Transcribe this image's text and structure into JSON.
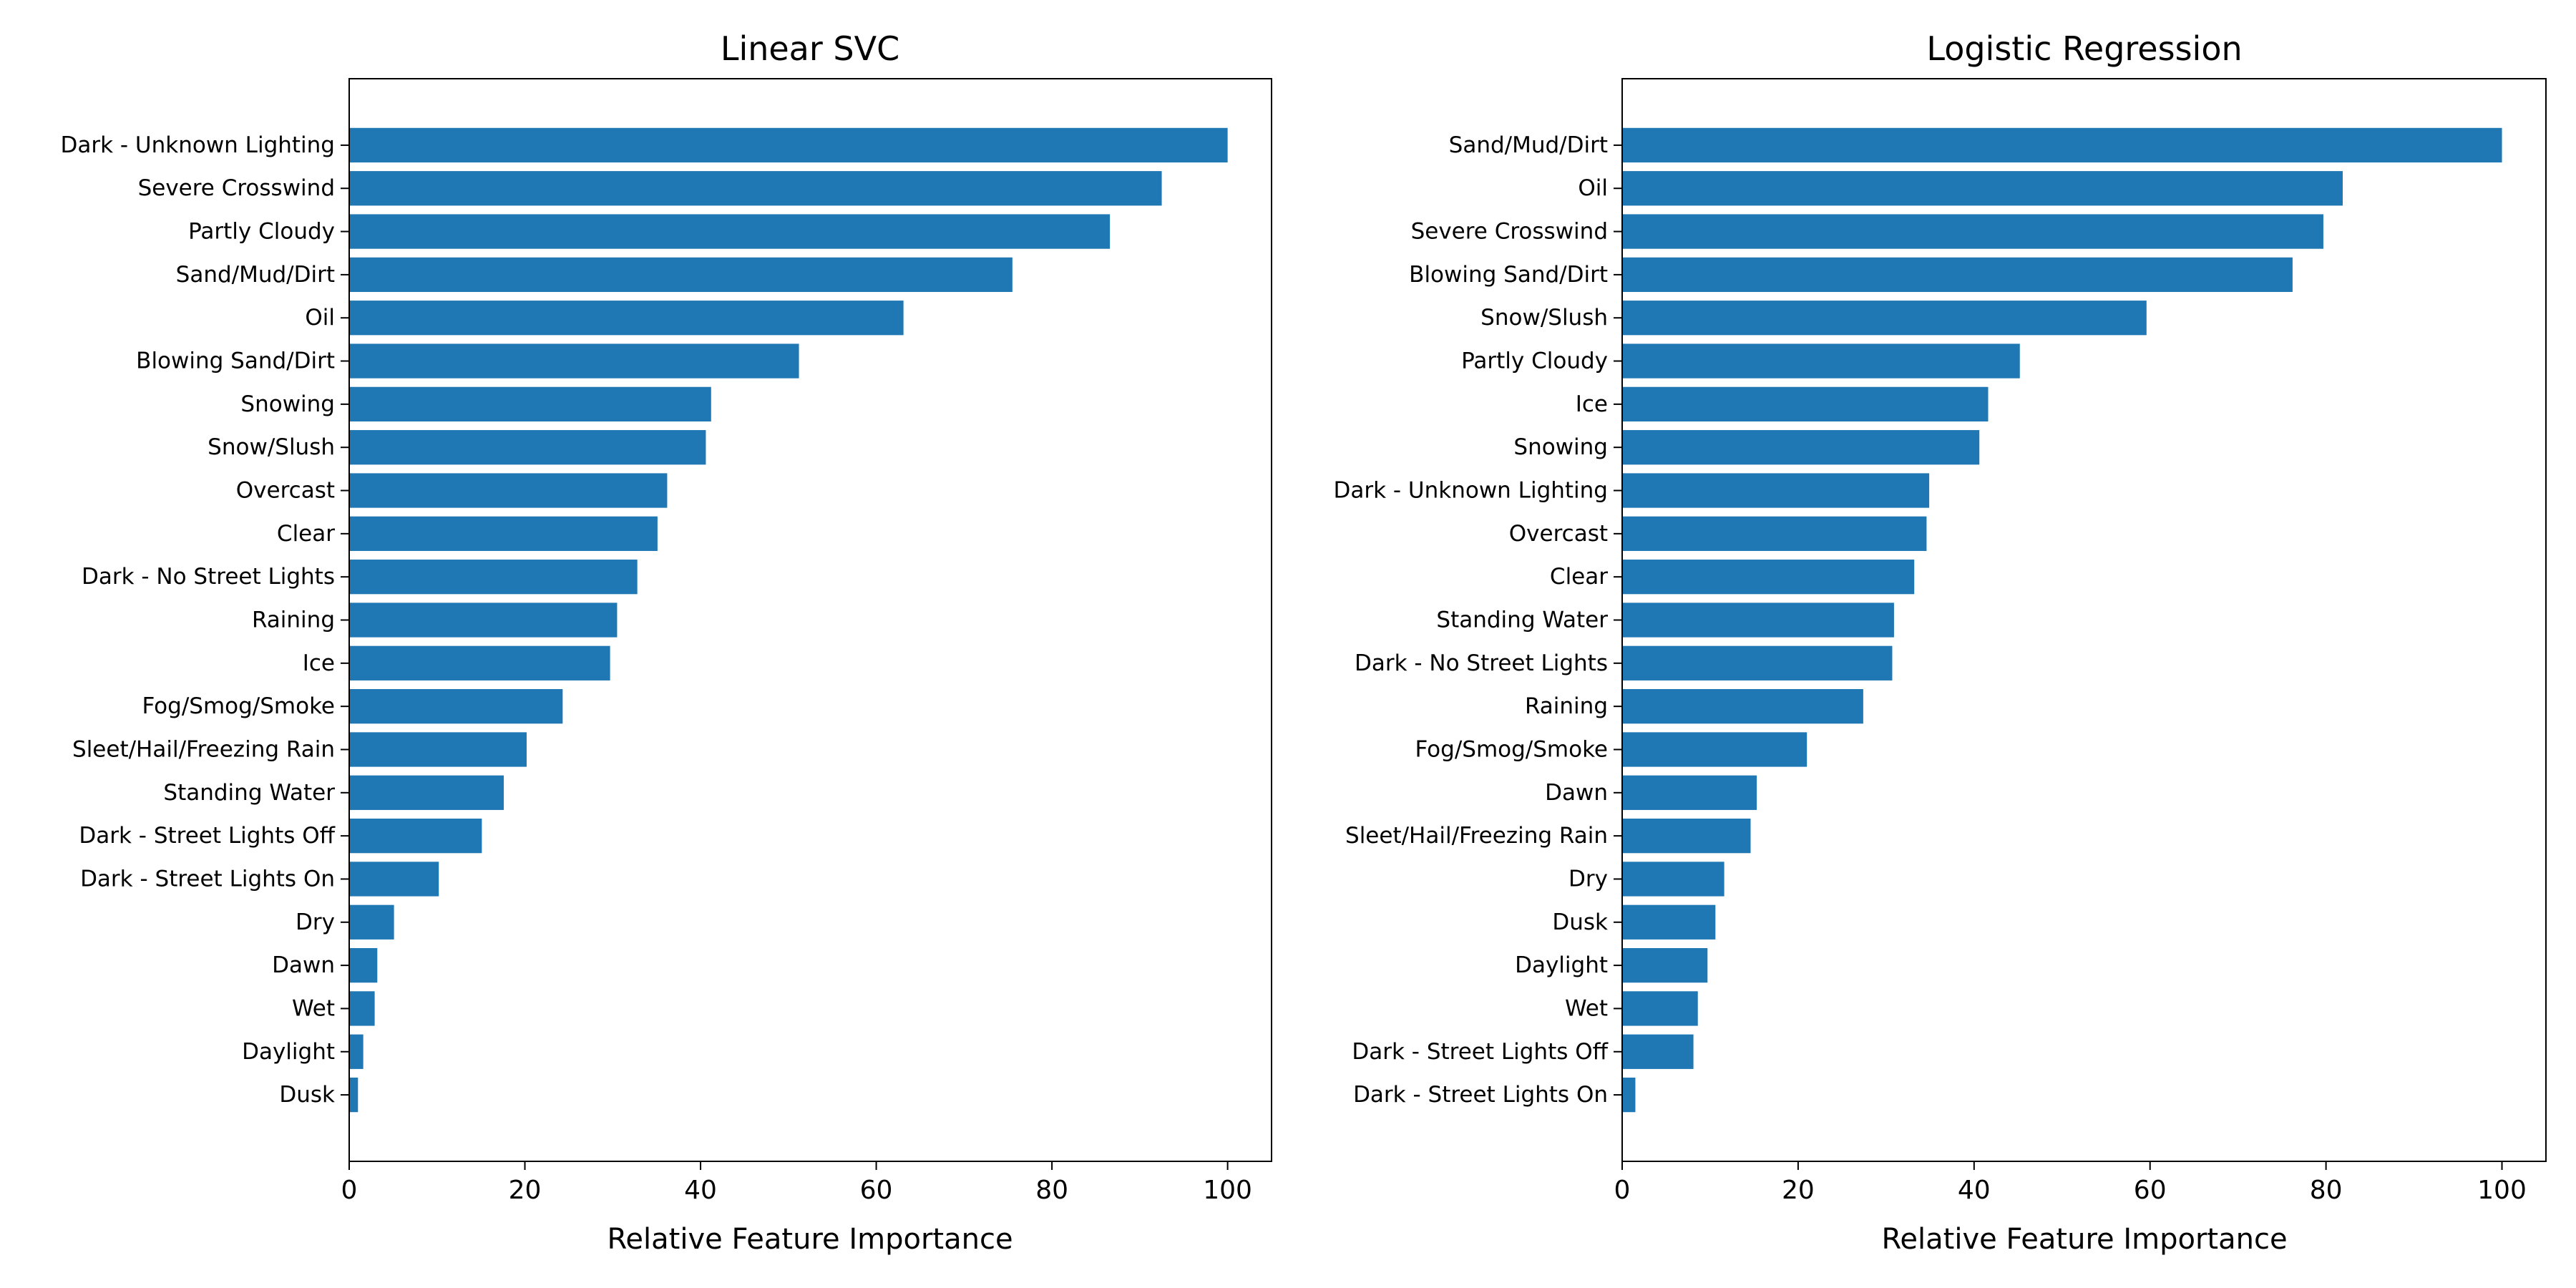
{
  "chart_data": [
    {
      "type": "bar",
      "orientation": "horizontal",
      "title": "Linear SVC",
      "xlabel": "Relative Feature Importance",
      "ylabel": "",
      "xlim": [
        0,
        105
      ],
      "xticks": [
        0,
        20,
        40,
        60,
        80,
        100
      ],
      "grid": false,
      "color": "#1f77b4",
      "categories": [
        "Dark - Unknown Lighting",
        "Severe Crosswind",
        "Partly Cloudy",
        "Sand/Mud/Dirt",
        "Oil",
        "Blowing Sand/Dirt",
        "Snowing",
        "Snow/Slush",
        "Overcast",
        "Clear",
        "Dark - No Street Lights",
        "Raining",
        "Ice",
        "Fog/Smog/Smoke",
        "Sleet/Hail/Freezing Rain",
        "Standing Water",
        "Dark - Street Lights Off",
        "Dark - Street Lights On",
        "Dry",
        "Dawn",
        "Wet",
        "Daylight",
        "Dusk"
      ],
      "values": [
        100,
        92.5,
        86.6,
        75.5,
        63.1,
        51.2,
        41.2,
        40.6,
        36.2,
        35.1,
        32.8,
        30.5,
        29.7,
        24.3,
        20.2,
        17.6,
        15.1,
        10.2,
        5.1,
        3.2,
        2.9,
        1.6,
        1.0
      ]
    },
    {
      "type": "bar",
      "orientation": "horizontal",
      "title": "Logistic Regression",
      "xlabel": "Relative Feature Importance",
      "ylabel": "",
      "xlim": [
        0,
        105
      ],
      "xticks": [
        0,
        20,
        40,
        60,
        80,
        100
      ],
      "grid": false,
      "color": "#1f77b4",
      "categories": [
        "Sand/Mud/Dirt",
        "Oil",
        "Severe Crosswind",
        "Blowing Sand/Dirt",
        "Snow/Slush",
        "Partly Cloudy",
        "Ice",
        "Snowing",
        "Dark - Unknown Lighting",
        "Overcast",
        "Clear",
        "Standing Water",
        "Dark - No Street Lights",
        "Raining",
        "Fog/Smog/Smoke",
        "Dawn",
        "Sleet/Hail/Freezing Rain",
        "Dry",
        "Dusk",
        "Daylight",
        "Wet",
        "Dark - Street Lights Off",
        "Dark - Street Lights On"
      ],
      "values": [
        100,
        81.9,
        79.7,
        76.2,
        59.6,
        45.2,
        41.6,
        40.6,
        34.9,
        34.6,
        33.2,
        30.9,
        30.7,
        27.4,
        21.0,
        15.3,
        14.6,
        11.6,
        10.6,
        9.7,
        8.6,
        8.1,
        1.5
      ]
    }
  ]
}
